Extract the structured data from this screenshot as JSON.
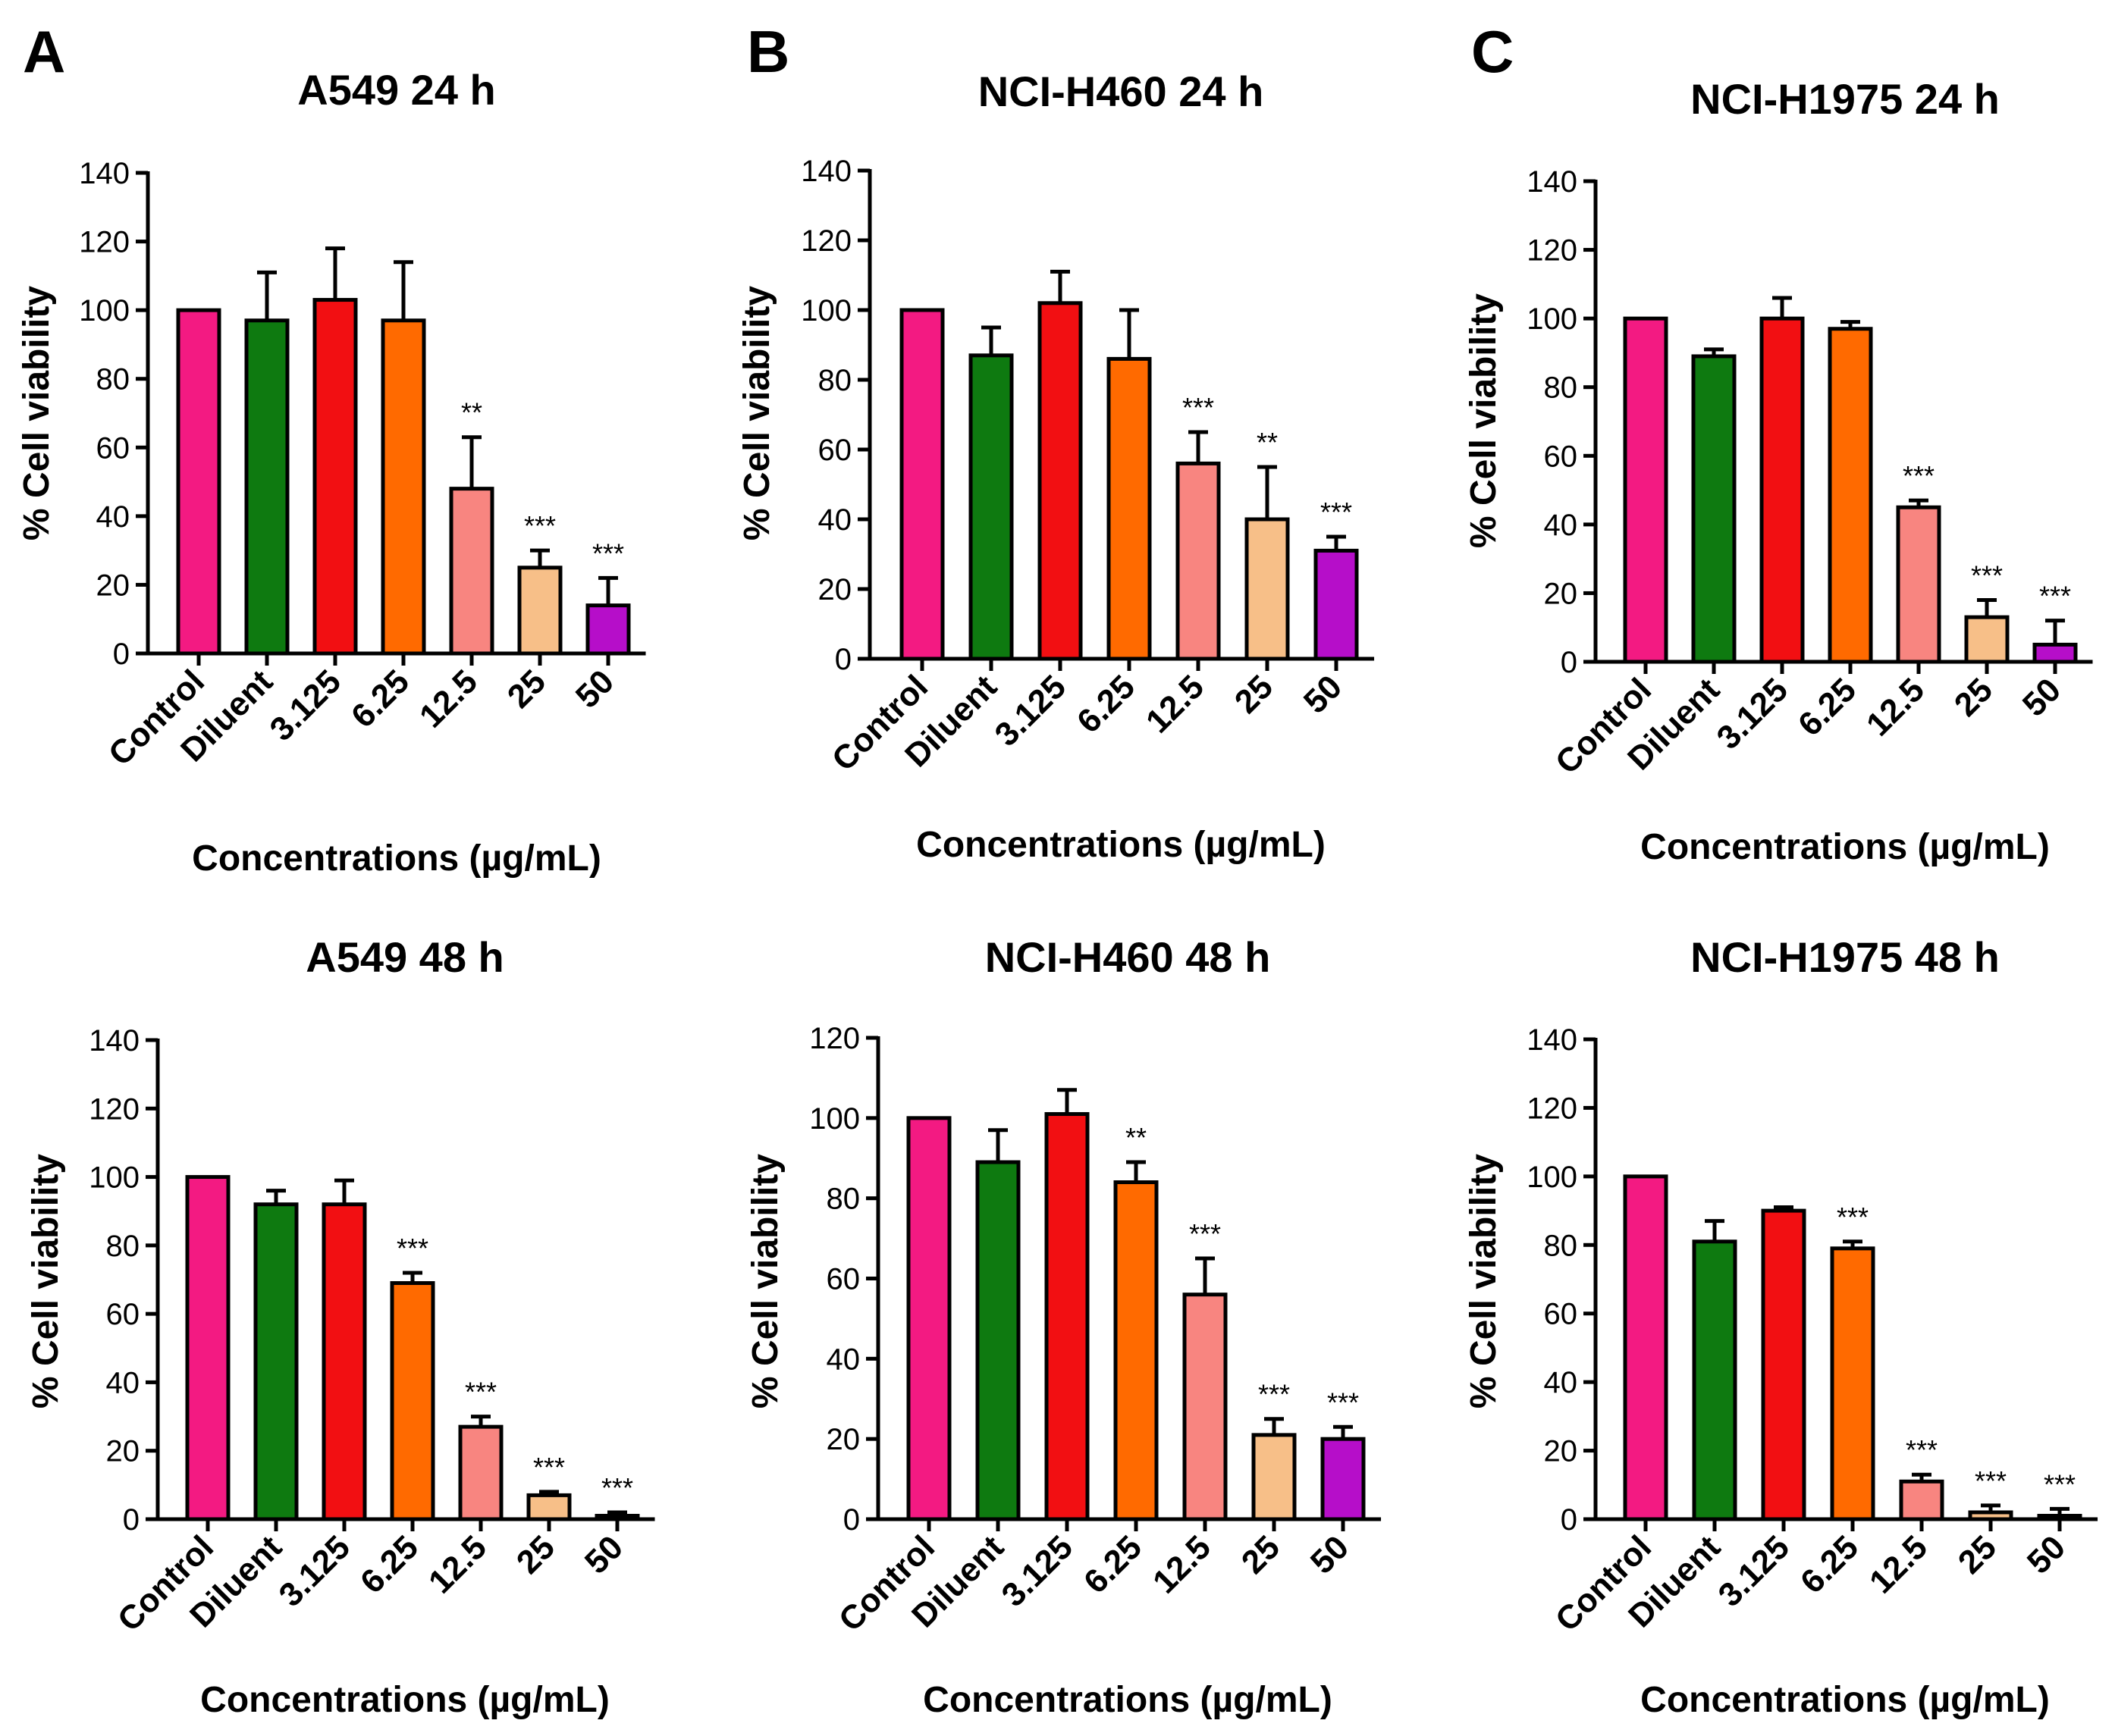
{
  "panel_letters": [
    "A",
    "B",
    "C"
  ],
  "colors": {
    "Control": "#F31A82",
    "Diluent": "#0E7A10",
    "3.125": "#F20F12",
    "6.25": "#FF6A00",
    "12.5": "#F88580",
    "25": "#F7BF88",
    "50": "#B60EC9"
  },
  "chart_data": [
    {
      "type": "bar",
      "panel": "A",
      "title": "A549 24 h",
      "xlabel": "Concentrations (µg/mL)",
      "ylabel": "% Cell viability",
      "ylim": [
        0,
        140
      ],
      "yticks": [
        0,
        20,
        40,
        60,
        80,
        100,
        120,
        140
      ],
      "categories": [
        "Control",
        "Diluent",
        "3.125",
        "6.25",
        "12.5",
        "25",
        "50"
      ],
      "values": [
        100,
        97,
        103,
        97,
        48,
        25,
        14
      ],
      "errors": [
        0,
        14,
        15,
        17,
        15,
        5,
        8
      ],
      "significance": [
        "",
        "",
        "",
        "",
        "**",
        "***",
        "***"
      ]
    },
    {
      "type": "bar",
      "panel": "B",
      "title": "NCI-H460 24 h",
      "xlabel": "Concentrations (µg/mL)",
      "ylabel": "% Cell viability",
      "ylim": [
        0,
        140
      ],
      "yticks": [
        0,
        20,
        40,
        60,
        80,
        100,
        120,
        140
      ],
      "categories": [
        "Control",
        "Diluent",
        "3.125",
        "6.25",
        "12.5",
        "25",
        "50"
      ],
      "values": [
        100,
        87,
        102,
        86,
        56,
        40,
        31
      ],
      "errors": [
        0,
        8,
        9,
        14,
        9,
        15,
        4
      ],
      "significance": [
        "",
        "",
        "",
        "",
        "***",
        "**",
        "***"
      ]
    },
    {
      "type": "bar",
      "panel": "C",
      "title": "NCI-H1975 24 h",
      "xlabel": "Concentrations (µg/mL)",
      "ylabel": "% Cell viability",
      "ylim": [
        0,
        140
      ],
      "yticks": [
        0,
        20,
        40,
        60,
        80,
        100,
        120,
        140
      ],
      "categories": [
        "Control",
        "Diluent",
        "3.125",
        "6.25",
        "12.5",
        "25",
        "50"
      ],
      "values": [
        100,
        89,
        100,
        97,
        45,
        13,
        5
      ],
      "errors": [
        0,
        2,
        6,
        2,
        2,
        5,
        7
      ],
      "significance": [
        "",
        "",
        "",
        "",
        "***",
        "***",
        "***"
      ]
    },
    {
      "type": "bar",
      "panel": "A",
      "title": "A549 48 h",
      "xlabel": "Concentrations (µg/mL)",
      "ylabel": "% Cell viability",
      "ylim": [
        0,
        140
      ],
      "yticks": [
        0,
        20,
        40,
        60,
        80,
        100,
        120,
        140
      ],
      "categories": [
        "Control",
        "Diluent",
        "3.125",
        "6.25",
        "12.5",
        "25",
        "50"
      ],
      "values": [
        100,
        92,
        92,
        69,
        27,
        7,
        1
      ],
      "errors": [
        0,
        4,
        7,
        3,
        3,
        1,
        1
      ],
      "significance": [
        "",
        "",
        "",
        "***",
        "***",
        "***",
        "***"
      ]
    },
    {
      "type": "bar",
      "panel": "B",
      "title": "NCI-H460 48 h",
      "xlabel": "Concentrations (µg/mL)",
      "ylabel": "% Cell viability",
      "ylim": [
        0,
        120
      ],
      "yticks": [
        0,
        20,
        40,
        60,
        80,
        100,
        120
      ],
      "categories": [
        "Control",
        "Diluent",
        "3.125",
        "6.25",
        "12.5",
        "25",
        "50"
      ],
      "values": [
        100,
        89,
        101,
        84,
        56,
        21,
        20
      ],
      "errors": [
        0,
        8,
        6,
        5,
        9,
        4,
        3
      ],
      "significance": [
        "",
        "",
        "",
        "**",
        "***",
        "***",
        "***"
      ]
    },
    {
      "type": "bar",
      "panel": "C",
      "title": "NCI-H1975 48 h",
      "xlabel": "Concentrations (µg/mL)",
      "ylabel": "% Cell viability",
      "ylim": [
        0,
        140
      ],
      "yticks": [
        0,
        20,
        40,
        60,
        80,
        100,
        120,
        140
      ],
      "categories": [
        "Control",
        "Diluent",
        "3.125",
        "6.25",
        "12.5",
        "25",
        "50"
      ],
      "values": [
        100,
        81,
        90,
        79,
        11,
        2,
        1
      ],
      "errors": [
        0,
        6,
        1,
        2,
        2,
        2,
        2
      ],
      "significance": [
        "",
        "",
        "",
        "***",
        "***",
        "***",
        "***"
      ]
    }
  ]
}
